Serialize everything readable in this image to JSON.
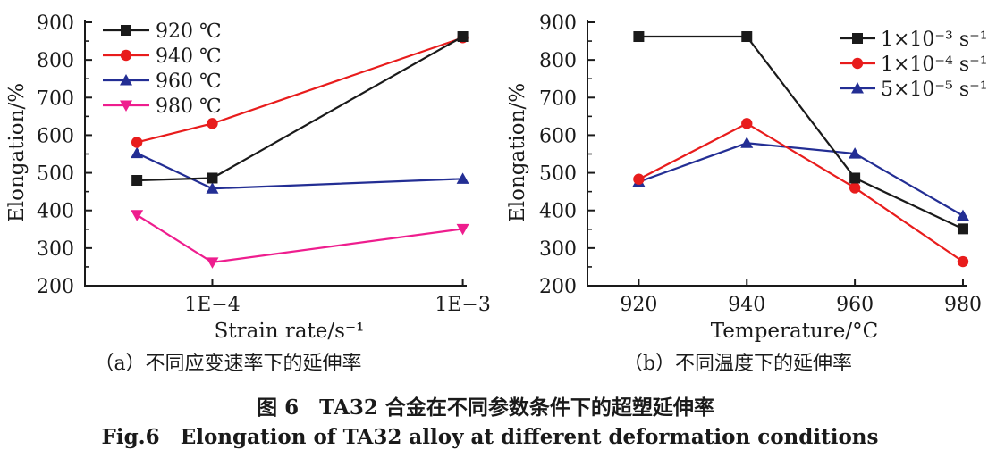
{
  "figure": {
    "caption_a": "（a）不同应变速率下的延伸率",
    "caption_b": "（b）不同温度下的延伸率",
    "title_zh": "图 6　TA32 合金在不同参数条件下的超塑延伸率",
    "title_en": "Fig.6　Elongation of TA32 alloy at different deformation conditions"
  },
  "colors": {
    "axis": "#1a1a1a",
    "black": "#1a1a1a",
    "red": "#e81c1c",
    "blue": "#232e94",
    "magenta": "#ee1d8e",
    "background": "#ffffff"
  },
  "chart_data": [
    {
      "id": "a",
      "type": "line",
      "title": "",
      "xlabel": "Strain rate/s⁻¹",
      "ylabel": "Elongation/%",
      "x_scale": "log",
      "x": [
        5e-05,
        0.0001,
        0.001
      ],
      "x_domain": [
        3.1e-05,
        0.00102
      ],
      "x_ticks": [
        {
          "value": 0.0001,
          "label": "1E−4"
        },
        {
          "value": 0.001,
          "label": "1E−3"
        }
      ],
      "ylim": [
        200,
        900
      ],
      "y_ticks": [
        200,
        300,
        400,
        500,
        600,
        700,
        800,
        900
      ],
      "y_minor_step": 50,
      "grid": false,
      "legend_position": "top-left-inside",
      "series": [
        {
          "name": "920 ℃",
          "color": "#1a1a1a",
          "marker": "square",
          "values": [
            480,
            486,
            862
          ]
        },
        {
          "name": "940 ℃",
          "color": "#e81c1c",
          "marker": "circle",
          "values": [
            581,
            631,
            859
          ]
        },
        {
          "name": "960 ℃",
          "color": "#232e94",
          "marker": "triangle-up",
          "values": [
            552,
            458,
            484
          ]
        },
        {
          "name": "980 ℃",
          "color": "#ee1d8e",
          "marker": "triangle-down",
          "values": [
            388,
            262,
            351
          ]
        }
      ]
    },
    {
      "id": "b",
      "type": "line",
      "title": "",
      "xlabel": "Temperature/°C",
      "ylabel": "Elongation/%",
      "x_scale": "linear",
      "x": [
        920,
        940,
        960,
        980
      ],
      "x_domain": [
        910.5,
        980.5
      ],
      "x_ticks": [
        {
          "value": 920,
          "label": "920"
        },
        {
          "value": 940,
          "label": "940"
        },
        {
          "value": 960,
          "label": "960"
        },
        {
          "value": 980,
          "label": "980"
        }
      ],
      "ylim": [
        200,
        900
      ],
      "y_ticks": [
        200,
        300,
        400,
        500,
        600,
        700,
        800,
        900
      ],
      "y_minor_step": 50,
      "grid": false,
      "legend_position": "top-right-inside",
      "series": [
        {
          "name": "1×10⁻³ s⁻¹",
          "color": "#1a1a1a",
          "marker": "square",
          "values": [
            862,
            862,
            486,
            351
          ]
        },
        {
          "name": "1×10⁻⁴ s⁻¹",
          "color": "#e81c1c",
          "marker": "circle",
          "values": [
            483,
            631,
            460,
            264
          ]
        },
        {
          "name": "5×10⁻⁵ s⁻¹",
          "color": "#232e94",
          "marker": "triangle-up",
          "values": [
            476,
            579,
            551,
            386
          ]
        }
      ]
    }
  ]
}
